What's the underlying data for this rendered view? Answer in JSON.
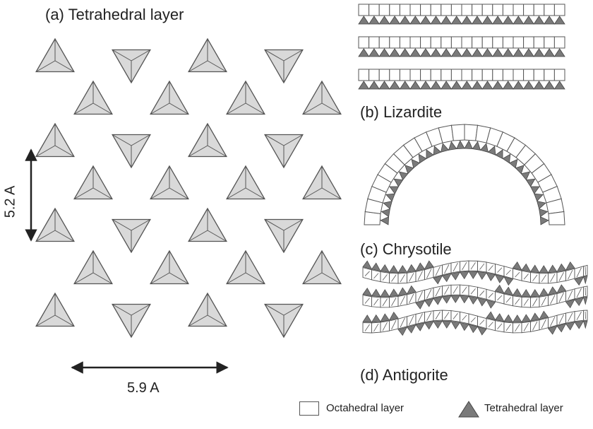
{
  "labels": {
    "a": "(a) Tetrahedral layer",
    "b": "(b) Lizardite",
    "c": "(c) Chrysotile",
    "d": "(d) Antigorite"
  },
  "dimensions": {
    "vertical": "5.2 A",
    "horizontal": "5.9 A"
  },
  "legend": {
    "octahedral": "Octahedral layer",
    "tetrahedral": "Tetrahedral layer"
  },
  "colors": {
    "tetra_fill": "#d9d9d9",
    "tetra_dark": "#7a7a7a",
    "stroke": "#555555",
    "octa_fill": "#ffffff"
  }
}
